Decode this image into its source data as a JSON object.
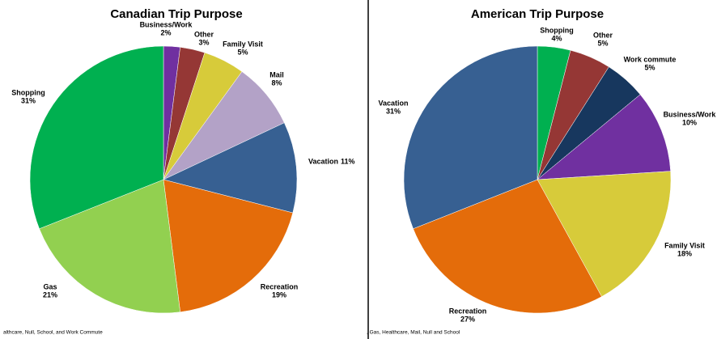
{
  "chart_data": [
    {
      "type": "pie",
      "title": "Canadian Trip Purpose",
      "categories": [
        "Business/Work",
        "Other",
        "Family Visit",
        "Mail",
        "Vacation",
        "Recreation",
        "Gas",
        "Shopping"
      ],
      "values": [
        2,
        3,
        5,
        8,
        11,
        19,
        21,
        31
      ],
      "value_labels": [
        "2%",
        "3%",
        "5%",
        "8%",
        "11%",
        "19%",
        "21%",
        "31%"
      ],
      "colors": [
        "#7030a0",
        "#953735",
        "#d7cb3a",
        "#b3a2c7",
        "#376092",
        "#e46c0a",
        "#92d050",
        "#00b050"
      ],
      "footnote": "althcare, Null, School, and Work Commute"
    },
    {
      "type": "pie",
      "title": "American Trip Purpose",
      "categories": [
        "Shopping",
        "Other",
        "Work commute",
        "Business/Work",
        "Family Visit",
        "Recreation",
        "Vacation"
      ],
      "values": [
        4,
        5,
        5,
        10,
        18,
        27,
        31
      ],
      "value_labels": [
        "4%",
        "5%",
        "5%",
        "10%",
        "18%",
        "27%",
        "31%"
      ],
      "colors": [
        "#00b050",
        "#953735",
        "#17375e",
        "#7030a0",
        "#d7cb3a",
        "#e46c0a",
        "#376092"
      ],
      "footnote": ", Gas, Healthcare, Mail, Null and School"
    }
  ]
}
